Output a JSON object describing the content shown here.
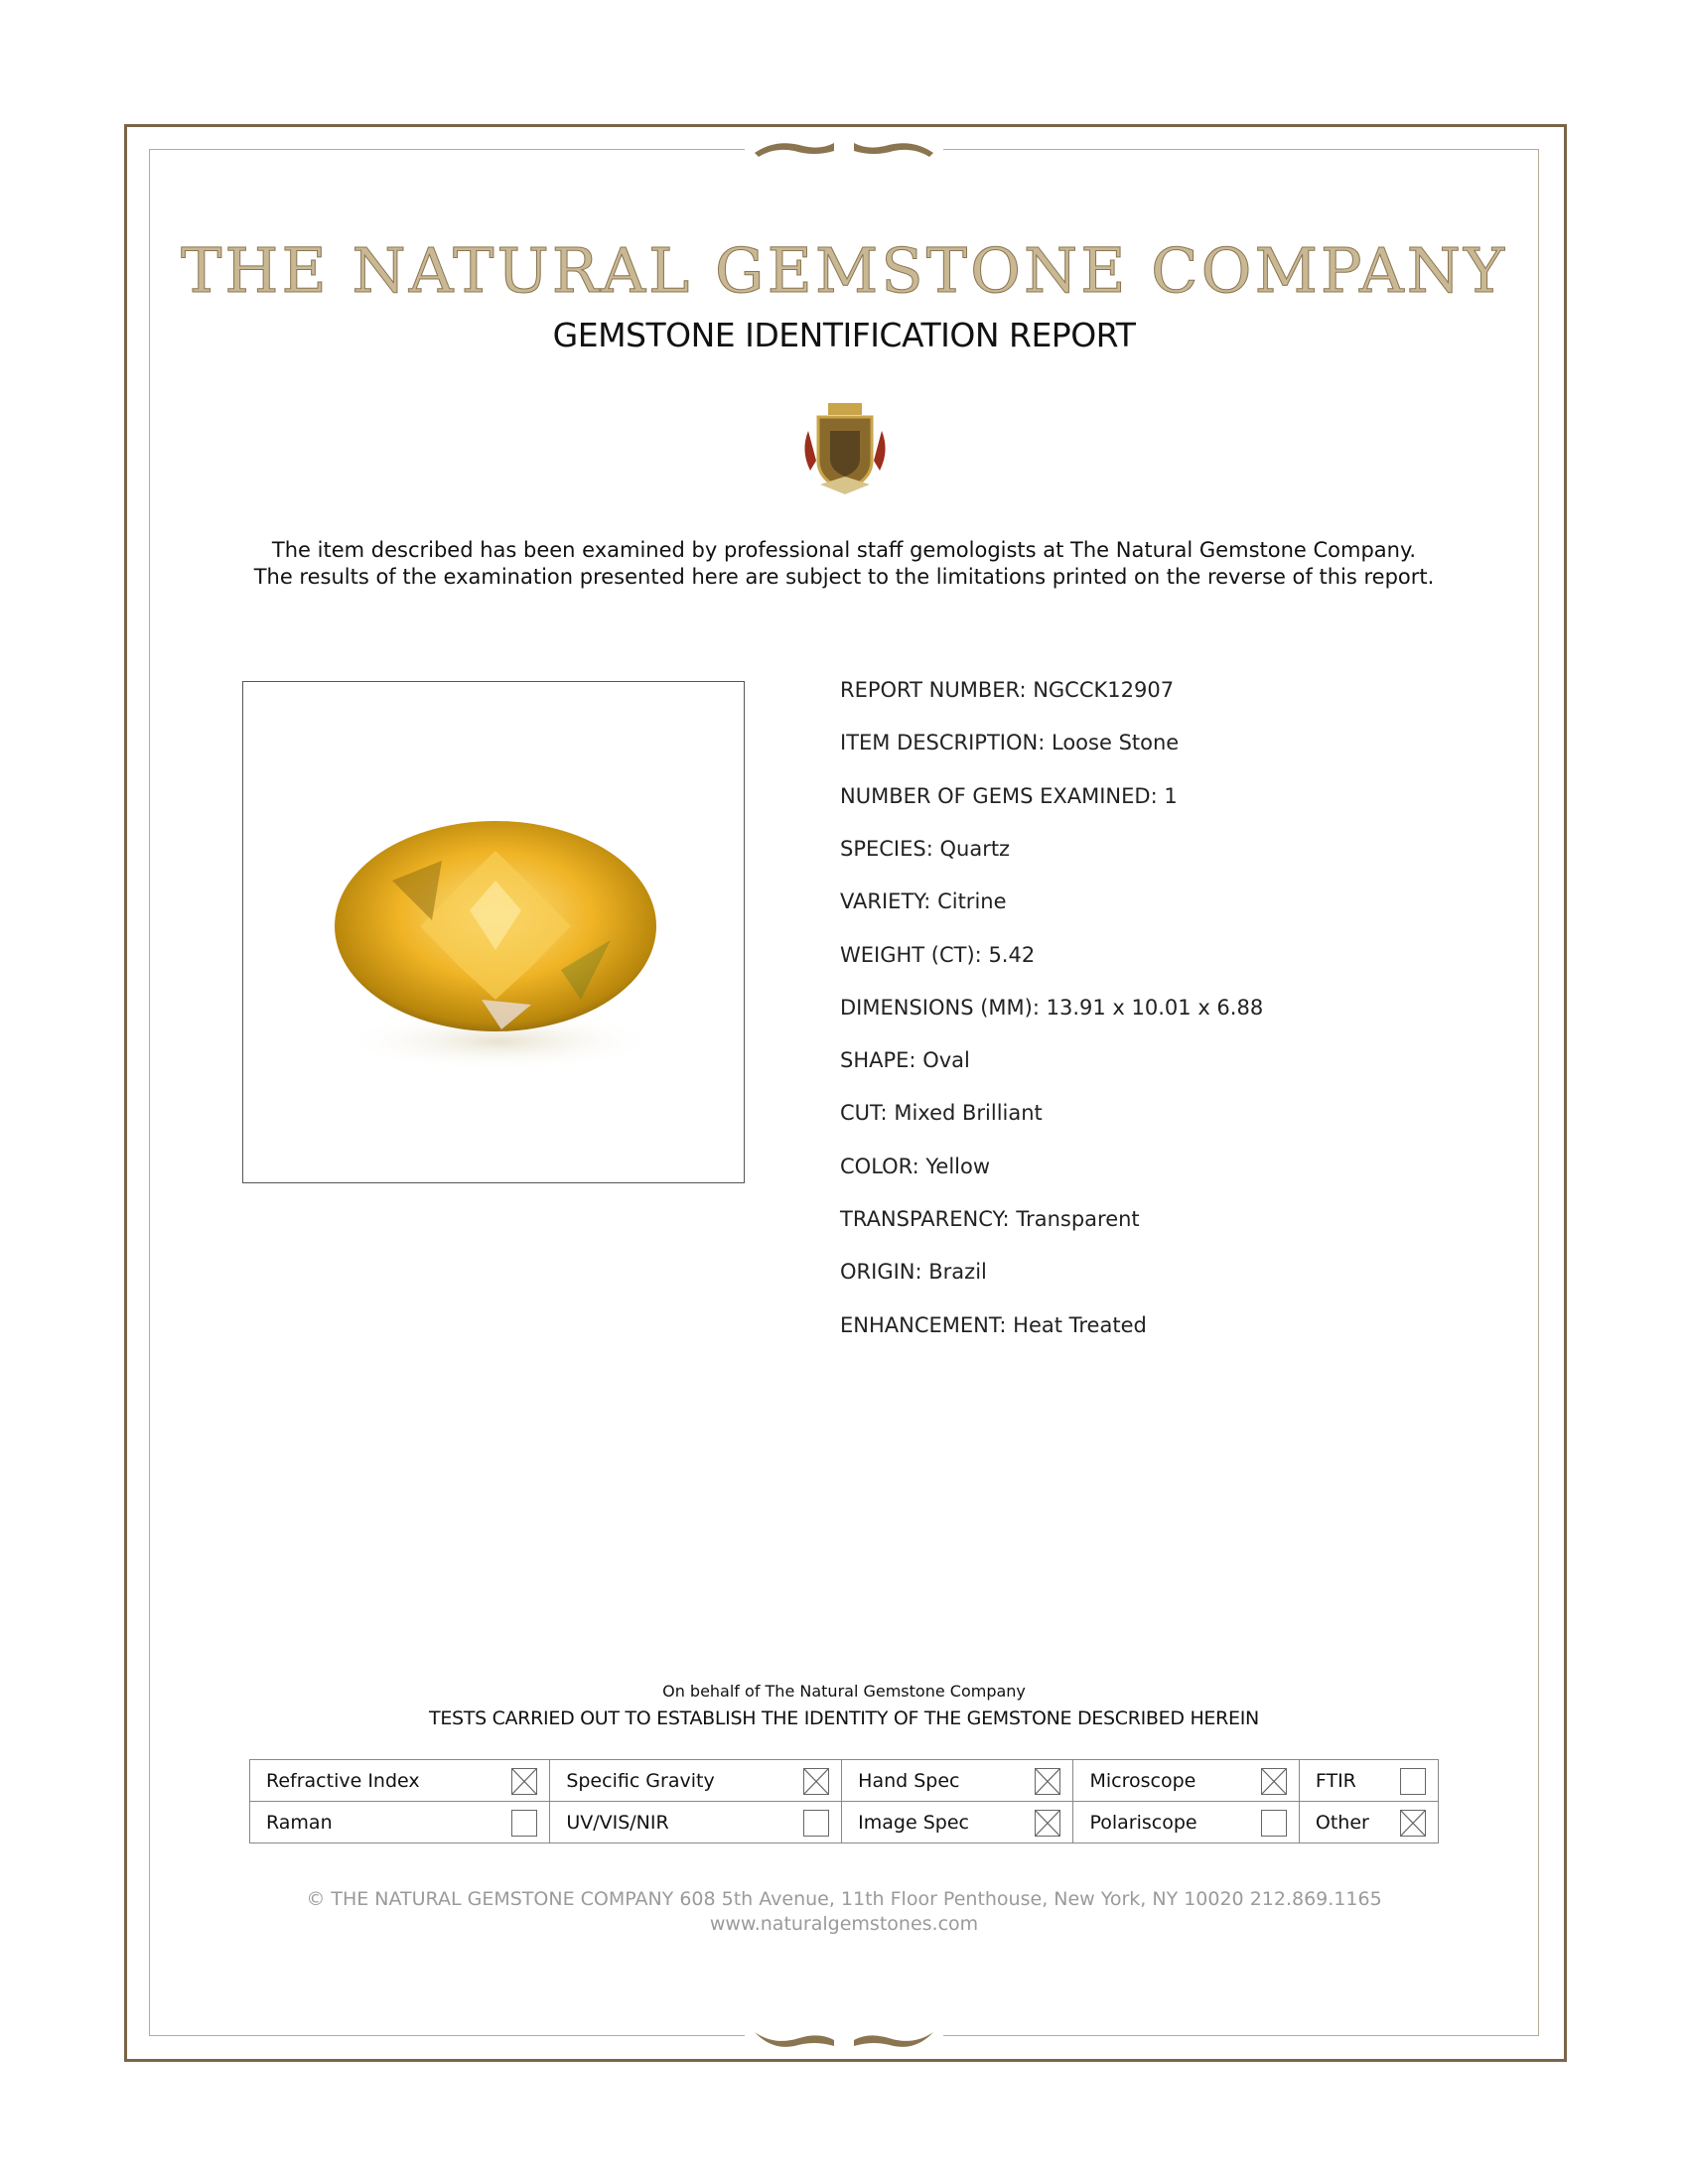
{
  "header": {
    "company": "THE NATURAL GEMSTONE COMPANY",
    "report_title": "GEMSTONE IDENTIFICATION REPORT"
  },
  "intro": [
    "The item described has been examined by professional staff gemologists at The Natural Gemstone Company.",
    "The results of the examination presented here are subject to the limitations printed on the reverse of this report."
  ],
  "fields": [
    {
      "label": "REPORT NUMBER:",
      "value": "NGCCK12907"
    },
    {
      "label": "ITEM DESCRIPTION:",
      "value": "Loose Stone"
    },
    {
      "label": "NUMBER OF GEMS EXAMINED:",
      "value": "1"
    },
    {
      "label": "SPECIES:",
      "value": "Quartz"
    },
    {
      "label": "VARIETY:",
      "value": "Citrine"
    },
    {
      "label": "WEIGHT (CT):",
      "value": "5.42"
    },
    {
      "label": "DIMENSIONS (MM):",
      "value": "13.91 x 10.01 x 6.88"
    },
    {
      "label": "SHAPE:",
      "value": "Oval"
    },
    {
      "label": "CUT:",
      "value": "Mixed Brilliant"
    },
    {
      "label": "COLOR:",
      "value": "Yellow"
    },
    {
      "label": "TRANSPARENCY:",
      "value": "Transparent"
    },
    {
      "label": "ORIGIN:",
      "value": "Brazil"
    },
    {
      "label": "ENHANCEMENT:",
      "value": "Heat Treated"
    }
  ],
  "on_behalf": "On behalf of The Natural Gemstone Company",
  "tests_heading": "TESTS CARRIED OUT TO ESTABLISH THE IDENTITY OF THE GEMSTONE DESCRIBED HEREIN",
  "tests": [
    [
      {
        "name": "Refractive Index",
        "checked": true
      },
      {
        "name": "Specific Gravity",
        "checked": true
      },
      {
        "name": "Hand Spec",
        "checked": true
      },
      {
        "name": "Microscope",
        "checked": true
      },
      {
        "name": "FTIR",
        "checked": false
      }
    ],
    [
      {
        "name": "Raman",
        "checked": false
      },
      {
        "name": "UV/VIS/NIR",
        "checked": false
      },
      {
        "name": "Image Spec",
        "checked": true
      },
      {
        "name": "Polariscope",
        "checked": false
      },
      {
        "name": "Other",
        "checked": true
      }
    ]
  ],
  "footer": {
    "address": "© THE NATURAL GEMSTONE COMPANY  608 5th Avenue, 11th Floor Penthouse, New York, NY  10020   212.869.1165",
    "website": "www.naturalgemstones.com"
  },
  "colors": {
    "border": "#7a6548",
    "title": "#a08a66",
    "gem": "#f2b92a"
  }
}
